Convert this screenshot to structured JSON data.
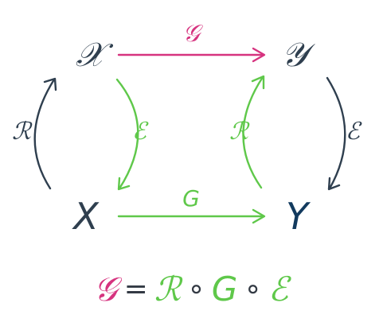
{
  "colors": {
    "pink": "#d6337f",
    "green": "#5fc84a",
    "dark": "#2f3f4f",
    "navy": "#123a5e"
  },
  "nodes": {
    "calX": "𝒳",
    "calY": "𝒴",
    "X": "X",
    "Y": "Y"
  },
  "edges": {
    "top": "𝒢",
    "bottom": "G",
    "left": "ℛ",
    "right": "ℰ",
    "inner_left": "ℰ",
    "inner_right": "ℛ"
  },
  "equation": {
    "lhs": "𝒢",
    "equals": "=",
    "r": "ℛ",
    "comp1": "∘",
    "g": "G",
    "comp2": "∘",
    "e": "ℰ"
  }
}
